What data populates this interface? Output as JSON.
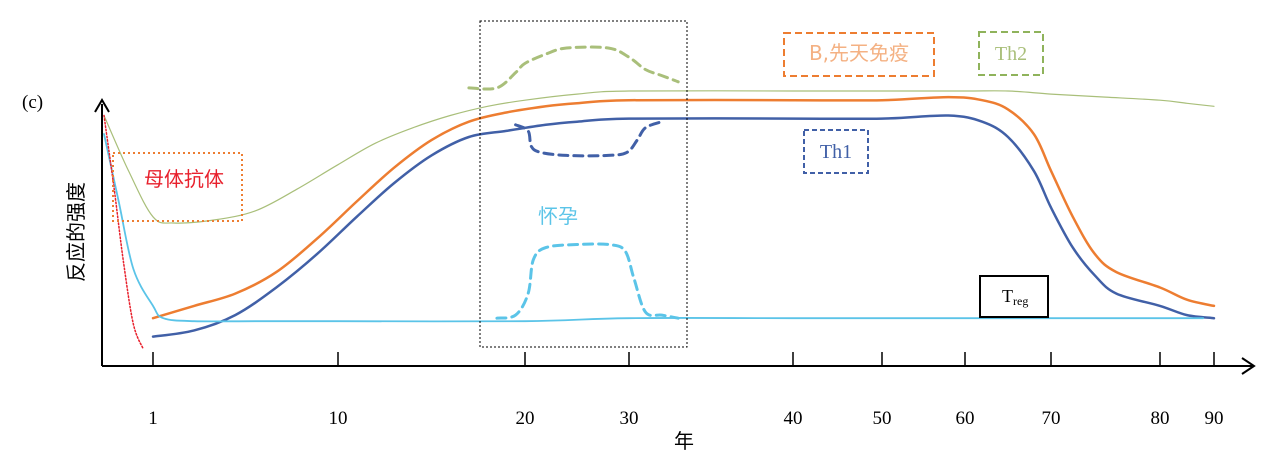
{
  "chart_data": {
    "type": "line",
    "panel_label": "(c)",
    "xlabel": "年",
    "ylabel": "反应的强度",
    "x_ticks": [
      "1",
      "10",
      "20",
      "30",
      "40",
      "50",
      "60",
      "70",
      "80",
      "90"
    ],
    "annotations": {
      "maternal": "母体抗体",
      "pregnancy": "怀孕",
      "b_innate": "B,先天免疫",
      "th2": "Th2",
      "th1": "Th1",
      "treg_main": "T",
      "treg_sub": "reg"
    },
    "series": [
      {
        "key": "th2",
        "color": "#a9bf7a",
        "points": [
          [
            0,
            0.78
          ],
          [
            0.5,
            0.6
          ],
          [
            1,
            0.45
          ],
          [
            2,
            0.43
          ],
          [
            4,
            0.44
          ],
          [
            6,
            0.47
          ],
          [
            8,
            0.54
          ],
          [
            10,
            0.62
          ],
          [
            12,
            0.69
          ],
          [
            14,
            0.74
          ],
          [
            16,
            0.78
          ],
          [
            18,
            0.81
          ],
          [
            20,
            0.83
          ],
          [
            25,
            0.85
          ],
          [
            30,
            0.86
          ],
          [
            40,
            0.86
          ],
          [
            50,
            0.86
          ],
          [
            60,
            0.86
          ],
          [
            65,
            0.86
          ],
          [
            70,
            0.85
          ],
          [
            75,
            0.84
          ],
          [
            80,
            0.83
          ],
          [
            85,
            0.82
          ],
          [
            90,
            0.81
          ]
        ]
      },
      {
        "key": "b_innate",
        "color": "#ed7d31",
        "points": [
          [
            1,
            0.12
          ],
          [
            3,
            0.16
          ],
          [
            5,
            0.2
          ],
          [
            7,
            0.27
          ],
          [
            9,
            0.38
          ],
          [
            11,
            0.5
          ],
          [
            13,
            0.61
          ],
          [
            15,
            0.7
          ],
          [
            17,
            0.76
          ],
          [
            19,
            0.79
          ],
          [
            22,
            0.81
          ],
          [
            25,
            0.82
          ],
          [
            30,
            0.83
          ],
          [
            40,
            0.83
          ],
          [
            50,
            0.83
          ],
          [
            58,
            0.84
          ],
          [
            62,
            0.83
          ],
          [
            65,
            0.8
          ],
          [
            68,
            0.72
          ],
          [
            70,
            0.6
          ],
          [
            72,
            0.45
          ],
          [
            74,
            0.33
          ],
          [
            76,
            0.27
          ],
          [
            80,
            0.22
          ],
          [
            85,
            0.18
          ],
          [
            90,
            0.16
          ]
        ]
      },
      {
        "key": "th1",
        "color": "#4160a7",
        "points": [
          [
            1,
            0.06
          ],
          [
            3,
            0.08
          ],
          [
            5,
            0.13
          ],
          [
            7,
            0.22
          ],
          [
            9,
            0.33
          ],
          [
            11,
            0.45
          ],
          [
            13,
            0.56
          ],
          [
            15,
            0.65
          ],
          [
            17,
            0.71
          ],
          [
            19,
            0.73
          ],
          [
            22,
            0.75
          ],
          [
            25,
            0.76
          ],
          [
            30,
            0.77
          ],
          [
            40,
            0.77
          ],
          [
            50,
            0.77
          ],
          [
            58,
            0.78
          ],
          [
            62,
            0.76
          ],
          [
            65,
            0.71
          ],
          [
            68,
            0.6
          ],
          [
            70,
            0.48
          ],
          [
            72,
            0.35
          ],
          [
            74,
            0.26
          ],
          [
            76,
            0.2
          ],
          [
            80,
            0.16
          ],
          [
            85,
            0.13
          ],
          [
            90,
            0.12
          ]
        ]
      },
      {
        "key": "pregnancy_baseline",
        "color": "#5bc4e8",
        "points": [
          [
            0,
            0.72
          ],
          [
            0.3,
            0.5
          ],
          [
            0.6,
            0.28
          ],
          [
            1,
            0.16
          ],
          [
            1.5,
            0.12
          ],
          [
            3,
            0.11
          ],
          [
            6,
            0.11
          ],
          [
            10,
            0.11
          ],
          [
            20,
            0.11
          ],
          [
            30,
            0.12
          ],
          [
            40,
            0.12
          ],
          [
            60,
            0.12
          ],
          [
            75,
            0.12
          ],
          [
            88,
            0.12
          ]
        ]
      },
      {
        "key": "maternal_antibody",
        "color": "#e8202c",
        "dotted": true,
        "points": [
          [
            0,
            0.78
          ],
          [
            0.2,
            0.55
          ],
          [
            0.4,
            0.3
          ],
          [
            0.6,
            0.1
          ],
          [
            0.8,
            0.02
          ]
        ]
      }
    ],
    "pregnancy_window": {
      "x_range": [
        17,
        34
      ],
      "y_range": [
        0,
        1.0
      ]
    },
    "pregnancy_bumps": [
      {
        "key": "th2_bump",
        "color": "#a9bf7a",
        "dashed": true,
        "points": [
          [
            17,
            0.87
          ],
          [
            18.5,
            0.87
          ],
          [
            19.5,
            0.92
          ],
          [
            20,
            0.95
          ],
          [
            22,
            0.98
          ],
          [
            24,
            1.0
          ],
          [
            28,
            1.0
          ],
          [
            30,
            0.97
          ],
          [
            31,
            0.93
          ],
          [
            32,
            0.91
          ],
          [
            33,
            0.89
          ]
        ]
      },
      {
        "key": "th1_bump",
        "color": "#4160a7",
        "dashed": true,
        "points": [
          [
            19.5,
            0.75
          ],
          [
            20.3,
            0.73
          ],
          [
            20.6,
            0.68
          ],
          [
            21.5,
            0.66
          ],
          [
            24,
            0.65
          ],
          [
            28,
            0.65
          ],
          [
            29.8,
            0.66
          ],
          [
            30.5,
            0.7
          ],
          [
            31,
            0.74
          ],
          [
            32,
            0.76
          ]
        ]
      },
      {
        "key": "pregnancy_bump",
        "color": "#5bc4e8",
        "dashed": true,
        "points": [
          [
            18.5,
            0.12
          ],
          [
            19.5,
            0.13
          ],
          [
            20.3,
            0.2
          ],
          [
            20.8,
            0.31
          ],
          [
            22,
            0.35
          ],
          [
            25,
            0.36
          ],
          [
            28,
            0.36
          ],
          [
            29.6,
            0.34
          ],
          [
            30.3,
            0.25
          ],
          [
            31,
            0.14
          ],
          [
            32,
            0.13
          ],
          [
            33,
            0.12
          ]
        ]
      }
    ],
    "xlim": [
      0,
      90
    ],
    "ylim": [
      0,
      1
    ]
  }
}
